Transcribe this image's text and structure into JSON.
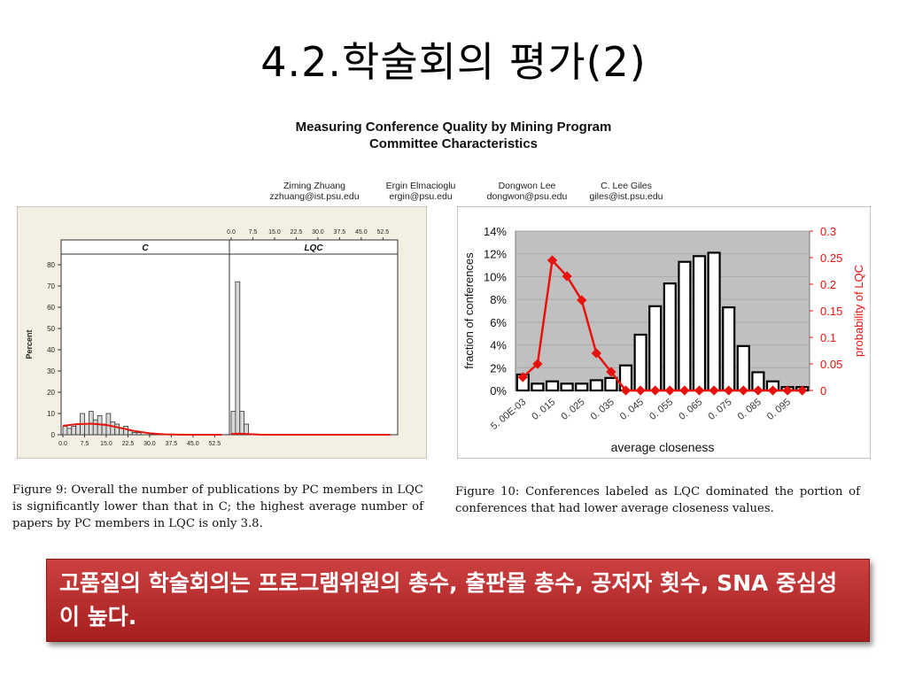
{
  "slide": {
    "title": "4.2.학술회의 평가(2)",
    "paper_title_line1": "Measuring Conference Quality by Mining Program",
    "paper_title_line2": "Committee Characteristics",
    "authors": [
      {
        "name": "Ziming Zhuang",
        "email": "zzhuang@ist.psu.edu"
      },
      {
        "name": "Ergin Elmacioglu",
        "email": "ergin@psu.edu"
      },
      {
        "name": "Dongwon Lee",
        "email": "dongwon@psu.edu"
      },
      {
        "name": "C. Lee Giles",
        "email": "giles@ist.psu.edu"
      }
    ],
    "caption_left": "Figure 9: Overall the number of publications by PC members in LQC is significantly lower than that in C; the highest average number of papers by PC members in LQC is only 3.8.",
    "caption_right": "Figure 10: Conferences labeled as LQC dominated the portion of conferences that had lower average closeness values.",
    "banner": "고품질의 학술회의는 프로그램위원의 총수, 출판물 총수, 공저자 횟수, SNA 중심성이 높다.",
    "colors": {
      "banner": "#b52a2a",
      "red_series": "#e8120c",
      "plot_bg": "#c0c0c0",
      "fig9_frame": "#f3efe2"
    }
  },
  "chart_data": [
    {
      "type": "bar",
      "name": "figure-9",
      "ylabel": "Percent",
      "panels": [
        {
          "label": "C",
          "x_ticks": [
            "0.0",
            "7.5",
            "15.0",
            "22.5",
            "30.0",
            "37.5",
            "45.0",
            "52.5"
          ],
          "xlim": [
            0,
            57
          ],
          "bars": [
            {
              "x": 0.75,
              "y": 4
            },
            {
              "x": 2.25,
              "y": 3
            },
            {
              "x": 3.75,
              "y": 4
            },
            {
              "x": 5.25,
              "y": 5
            },
            {
              "x": 6.75,
              "y": 10
            },
            {
              "x": 8.25,
              "y": 5
            },
            {
              "x": 9.75,
              "y": 11
            },
            {
              "x": 11.25,
              "y": 7
            },
            {
              "x": 12.75,
              "y": 9
            },
            {
              "x": 14.25,
              "y": 5
            },
            {
              "x": 15.75,
              "y": 10
            },
            {
              "x": 17.25,
              "y": 6
            },
            {
              "x": 18.75,
              "y": 5
            },
            {
              "x": 20.25,
              "y": 3
            },
            {
              "x": 21.75,
              "y": 4
            },
            {
              "x": 23.25,
              "y": 2
            },
            {
              "x": 24.75,
              "y": 1
            },
            {
              "x": 26.25,
              "y": 1
            }
          ],
          "curve": [
            [
              0,
              4.2
            ],
            [
              5,
              5.0
            ],
            [
              10,
              5.2
            ],
            [
              15,
              4.6
            ],
            [
              20,
              3.2
            ],
            [
              25,
              1.7
            ],
            [
              30,
              0.7
            ],
            [
              35,
              0.2
            ],
            [
              40,
              0.05
            ],
            [
              45,
              0
            ],
            [
              55,
              0
            ]
          ]
        },
        {
          "label": "LQC",
          "x_ticks": [
            "0.0",
            "7.5",
            "15.0",
            "22.5",
            "30.0",
            "37.5",
            "45.0",
            "52.5"
          ],
          "xlim": [
            0,
            57
          ],
          "bars": [
            {
              "x": 0.75,
              "y": 11
            },
            {
              "x": 2.25,
              "y": 72
            },
            {
              "x": 3.75,
              "y": 11
            },
            {
              "x": 5.25,
              "y": 5
            }
          ],
          "curve": [
            [
              0,
              0.4
            ],
            [
              3,
              0.5
            ],
            [
              6,
              0.3
            ],
            [
              10,
              0.05
            ],
            [
              15,
              0
            ],
            [
              55,
              0
            ]
          ]
        }
      ],
      "y_ticks": [
        0,
        10,
        20,
        30,
        40,
        50,
        60,
        70,
        80
      ],
      "ylim": [
        0,
        85
      ]
    },
    {
      "type": "bar",
      "name": "figure-10",
      "xlabel": "average closeness",
      "ylabel": "fraction of conferences",
      "y2label": "probability of LQC",
      "y_ticks": [
        "0%",
        "2%",
        "4%",
        "6%",
        "8%",
        "10%",
        "12%",
        "14%"
      ],
      "y2_ticks": [
        "0",
        "0.05",
        "0.1",
        "0.15",
        "0.2",
        "0.25",
        "0.3"
      ],
      "x_ticks": [
        "5. 00E-03",
        "0. 015",
        "0. 025",
        "0. 035",
        "0. 045",
        "0. 055",
        "0. 065",
        "0. 075",
        "0. 085",
        "0. 095"
      ],
      "ylim": [
        0,
        14
      ],
      "y2lim": [
        0,
        0.3
      ],
      "bars": [
        1.4,
        0.6,
        0.8,
        0.6,
        0.6,
        0.9,
        1.1,
        2.2,
        4.9,
        7.4,
        9.4,
        11.3,
        11.8,
        12.1,
        7.3,
        3.9,
        1.6,
        0.8,
        0.3,
        0.3
      ],
      "line": [
        0.025,
        0.05,
        0.245,
        0.215,
        0.17,
        0.07,
        0.035,
        0,
        0,
        0,
        0,
        0,
        0,
        0,
        0,
        0,
        0,
        0,
        0,
        0
      ]
    }
  ]
}
